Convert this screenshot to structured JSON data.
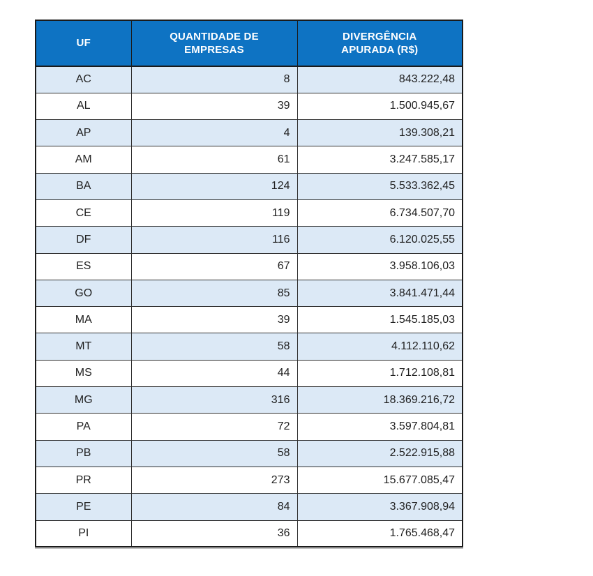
{
  "chart_data": {
    "type": "table",
    "columns": [
      "UF",
      "QUANTIDADE DE EMPRESAS",
      "DIVERGÊNCIA APURADA (R$)"
    ],
    "header_lines": [
      [
        "UF"
      ],
      [
        "QUANTIDADE DE",
        "EMPRESAS"
      ],
      [
        "DIVERGÊNCIA",
        "APURADA (R$)"
      ]
    ],
    "rows": [
      {
        "uf": "AC",
        "empresas": 8,
        "divergencia_reais": "843.222,48"
      },
      {
        "uf": "AL",
        "empresas": 39,
        "divergencia_reais": "1.500.945,67"
      },
      {
        "uf": "AP",
        "empresas": 4,
        "divergencia_reais": "139.308,21"
      },
      {
        "uf": "AM",
        "empresas": 61,
        "divergencia_reais": "3.247.585,17"
      },
      {
        "uf": "BA",
        "empresas": 124,
        "divergencia_reais": "5.533.362,45"
      },
      {
        "uf": "CE",
        "empresas": 119,
        "divergencia_reais": "6.734.507,70"
      },
      {
        "uf": "DF",
        "empresas": 116,
        "divergencia_reais": "6.120.025,55"
      },
      {
        "uf": "ES",
        "empresas": 67,
        "divergencia_reais": "3.958.106,03"
      },
      {
        "uf": "GO",
        "empresas": 85,
        "divergencia_reais": "3.841.471,44"
      },
      {
        "uf": "MA",
        "empresas": 39,
        "divergencia_reais": "1.545.185,03"
      },
      {
        "uf": "MT",
        "empresas": 58,
        "divergencia_reais": "4.112.110,62"
      },
      {
        "uf": "MS",
        "empresas": 44,
        "divergencia_reais": "1.712.108,81"
      },
      {
        "uf": "MG",
        "empresas": 316,
        "divergencia_reais": "18.369.216,72"
      },
      {
        "uf": "PA",
        "empresas": 72,
        "divergencia_reais": "3.597.804,81"
      },
      {
        "uf": "PB",
        "empresas": 58,
        "divergencia_reais": "2.522.915,88"
      },
      {
        "uf": "PR",
        "empresas": 273,
        "divergencia_reais": "15.677.085,47"
      },
      {
        "uf": "PE",
        "empresas": 84,
        "divergencia_reais": "3.367.908,94"
      },
      {
        "uf": "PI",
        "empresas": 36,
        "divergencia_reais": "1.765.468,47"
      }
    ],
    "layout": {
      "banding": "first body row shaded, alternating",
      "uf_alignment": "center",
      "number_alignment": "right"
    }
  },
  "colors": {
    "header_bg": "#0e73c3",
    "header_text": "#ffffff",
    "band_bg": "#dce9f6",
    "grid": "#2f2f2f",
    "outer_border": "#1b1b1b",
    "body_text": "#1f1f1f"
  }
}
